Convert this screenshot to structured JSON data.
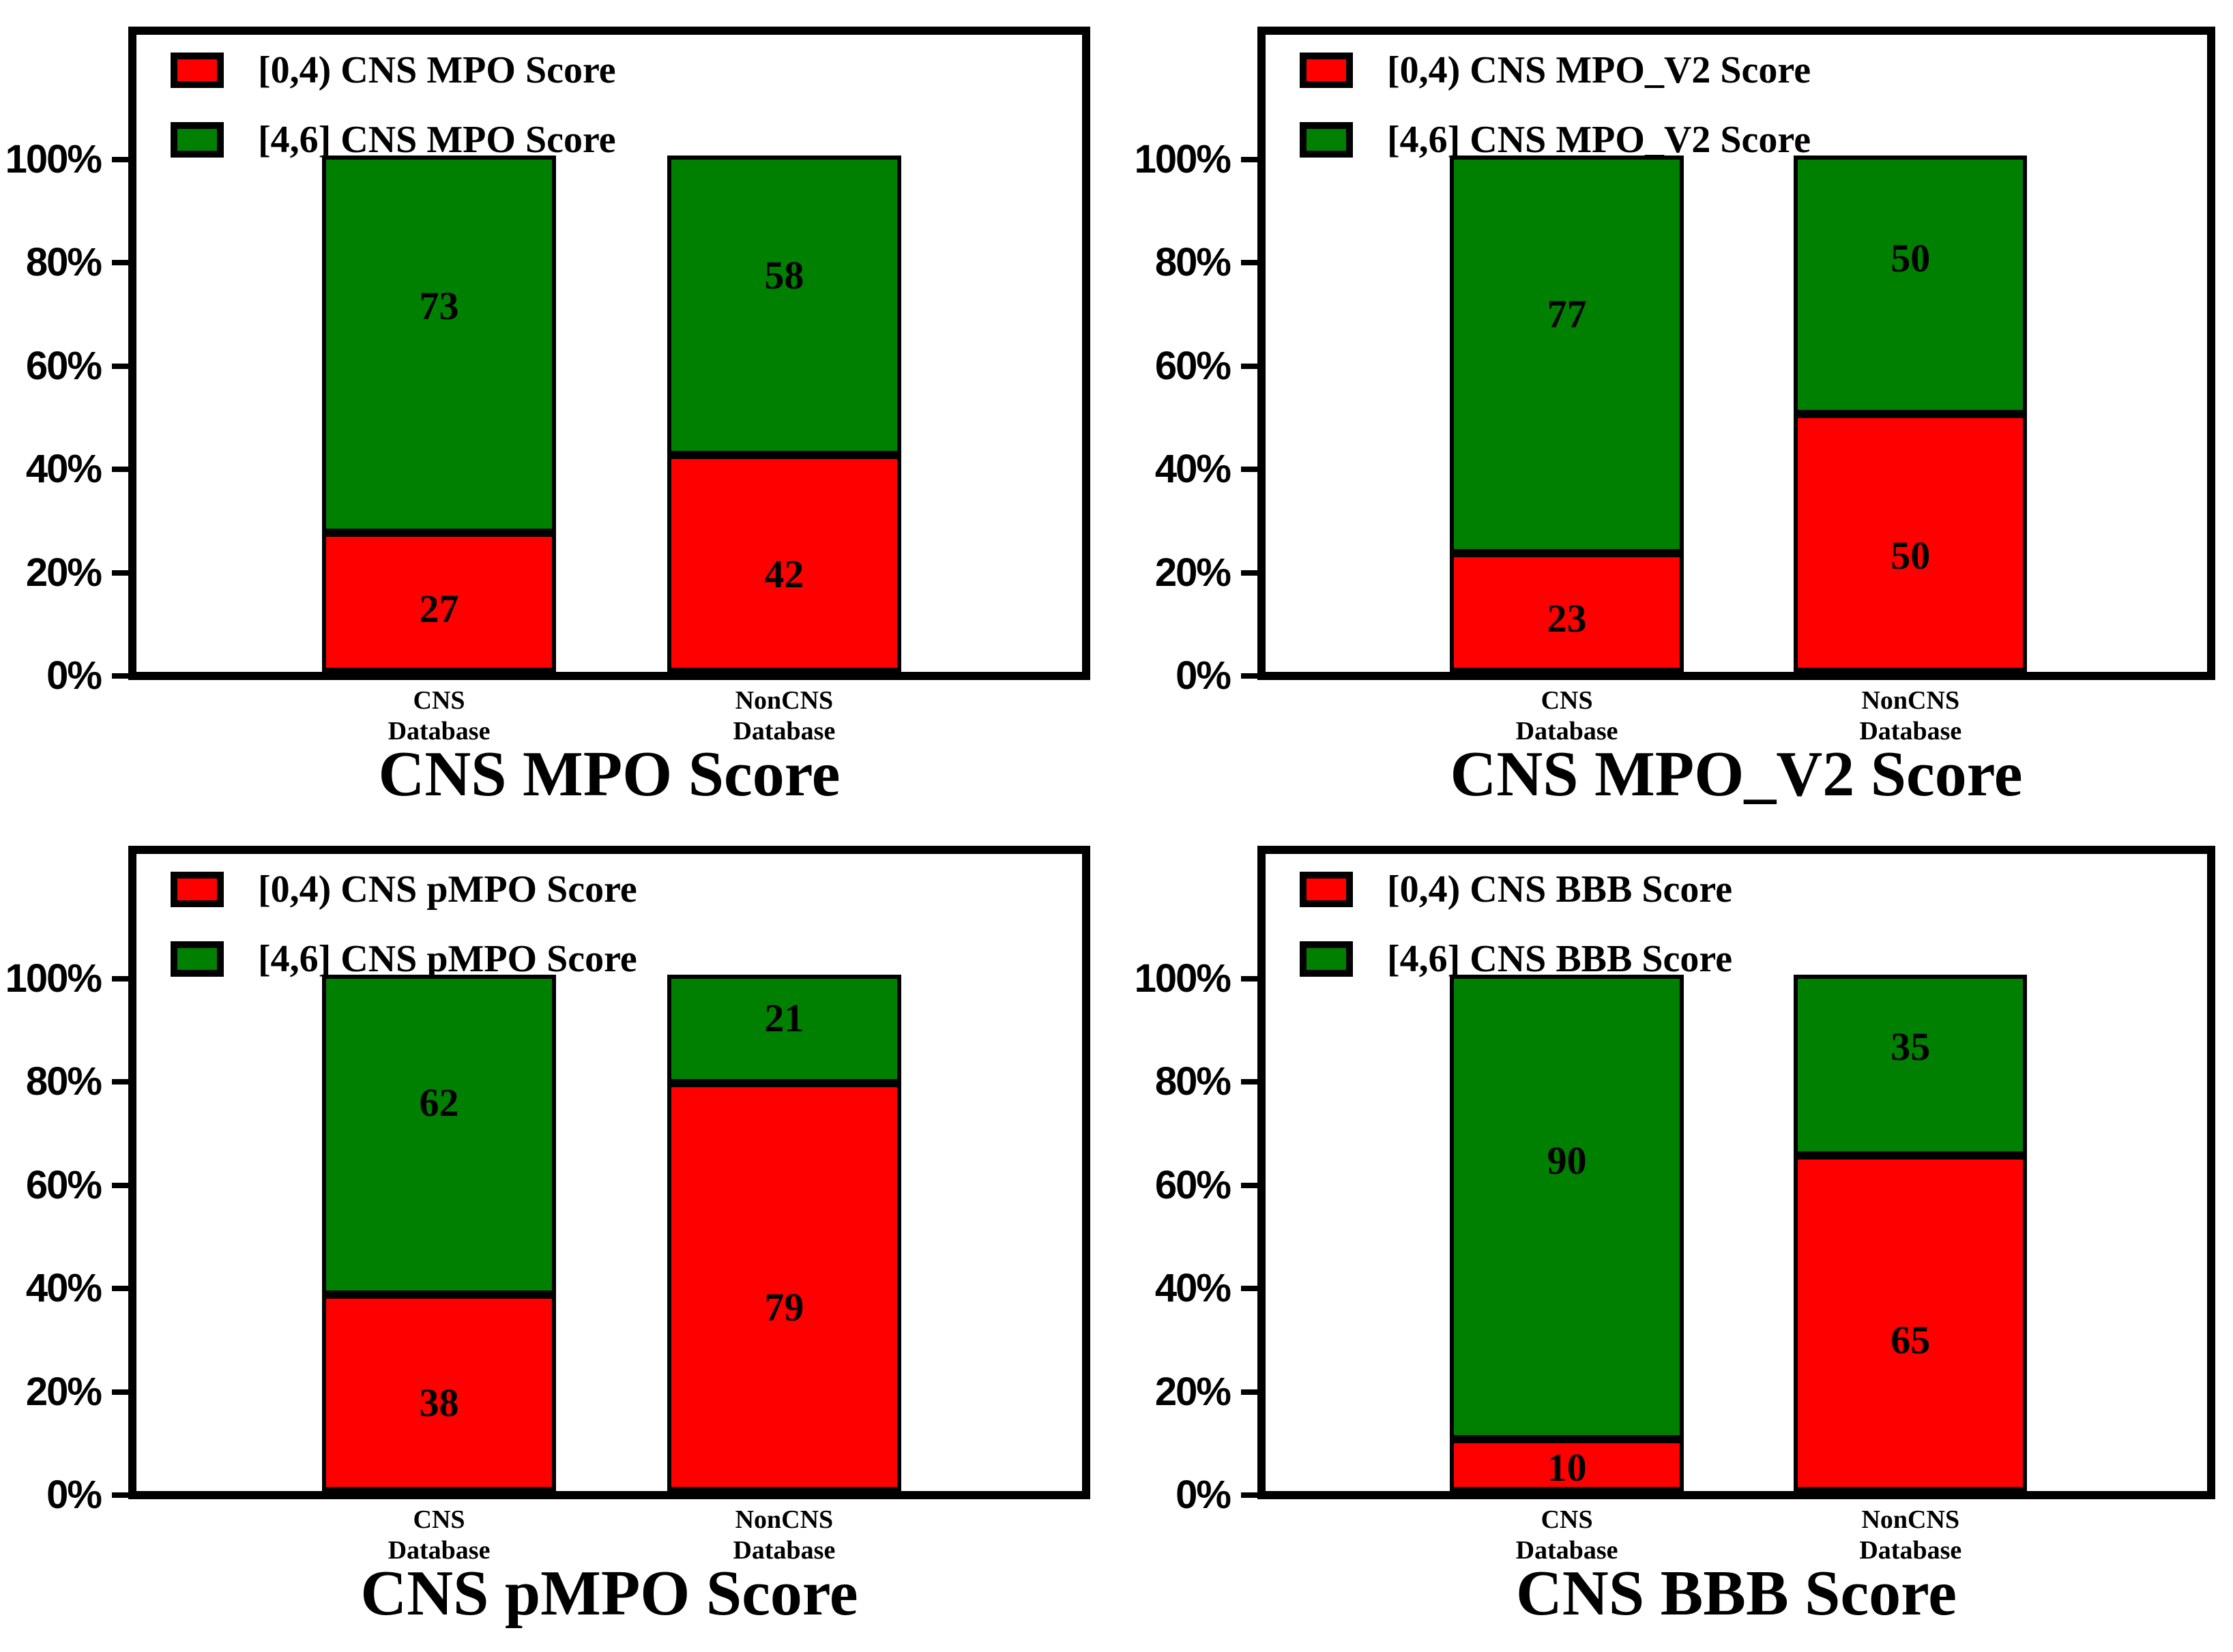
{
  "figure": {
    "background": "#ffffff",
    "colors": {
      "red": "#ff0000",
      "green": "#008000",
      "border": "#000000"
    },
    "y_axis": {
      "tick_labels": [
        "0%",
        "20%",
        "40%",
        "60%",
        "80%",
        "100%"
      ],
      "tick_values": [
        0,
        20,
        40,
        60,
        80,
        100
      ]
    }
  },
  "chart_data": [
    {
      "type": "bar",
      "stacked": true,
      "title": "CNS MPO Score",
      "categories": [
        "CNS\nDatabase",
        "NonCNS\nDatabase"
      ],
      "series": [
        {
          "name": "[0,4) CNS MPO Score",
          "color": "#ff0000",
          "values": [
            27,
            42
          ]
        },
        {
          "name": "[4,6] CNS MPO Score",
          "color": "#008000",
          "values": [
            73,
            58
          ]
        }
      ],
      "xlabel": "",
      "ylabel": "",
      "ylim": [
        0,
        126
      ],
      "grid": false,
      "legend_position": "upper left"
    },
    {
      "type": "bar",
      "stacked": true,
      "title": "CNS MPO_V2 Score",
      "categories": [
        "CNS\nDatabase",
        "NonCNS\nDatabase"
      ],
      "series": [
        {
          "name": "[0,4) CNS MPO_V2 Score",
          "color": "#ff0000",
          "values": [
            23,
            50
          ]
        },
        {
          "name": "[4,6] CNS MPO_V2 Score",
          "color": "#008000",
          "values": [
            77,
            50
          ]
        }
      ],
      "xlabel": "",
      "ylabel": "",
      "ylim": [
        0,
        126
      ],
      "grid": false,
      "legend_position": "upper left"
    },
    {
      "type": "bar",
      "stacked": true,
      "title": "CNS pMPO Score",
      "categories": [
        "CNS\nDatabase",
        "NonCNS\nDatabase"
      ],
      "series": [
        {
          "name": "[0,4) CNS pMPO Score",
          "color": "#ff0000",
          "values": [
            38,
            79
          ]
        },
        {
          "name": "[4,6] CNS pMPO Score",
          "color": "#008000",
          "values": [
            62,
            21
          ]
        }
      ],
      "xlabel": "",
      "ylabel": "",
      "ylim": [
        0,
        126
      ],
      "grid": false,
      "legend_position": "upper left"
    },
    {
      "type": "bar",
      "stacked": true,
      "title": "CNS BBB Score",
      "categories": [
        "CNS\nDatabase",
        "NonCNS\nDatabase"
      ],
      "series": [
        {
          "name": "[0,4) CNS BBB Score",
          "color": "#ff0000",
          "values": [
            10,
            65
          ]
        },
        {
          "name": "[4,6] CNS BBB Score",
          "color": "#008000",
          "values": [
            90,
            35
          ]
        }
      ],
      "xlabel": "",
      "ylabel": "",
      "ylim": [
        0,
        126
      ],
      "grid": false,
      "legend_position": "upper left"
    }
  ]
}
